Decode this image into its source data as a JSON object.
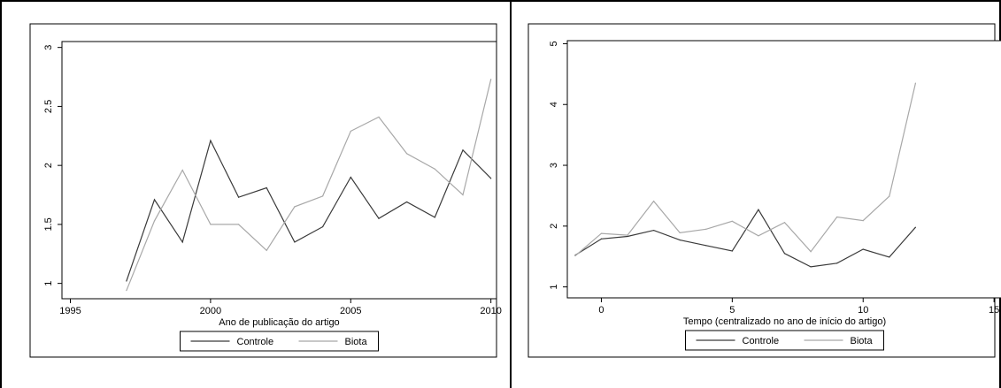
{
  "chart_data": [
    {
      "type": "line",
      "title": "",
      "xlabel": "Ano de publicação do artigo",
      "ylabel": "",
      "xlim": [
        1994.7,
        2010.2
      ],
      "ylim": [
        0.87,
        3.05
      ],
      "xticks": [
        1995,
        2000,
        2005,
        2010
      ],
      "yticks": [
        1,
        1.5,
        2,
        2.5,
        3
      ],
      "ytick_labels": [
        "1",
        "1.5",
        "2",
        "2.5",
        "3"
      ],
      "grid": false,
      "legend_position": "bottom",
      "series": [
        {
          "name": "Controle",
          "color": "#3a3a3a",
          "x": [
            1997,
            1998,
            1999,
            2000,
            2001,
            2002,
            2003,
            2004,
            2005,
            2006,
            2007,
            2008,
            2009,
            2010
          ],
          "y": [
            1.02,
            1.71,
            1.35,
            2.21,
            1.73,
            1.81,
            1.35,
            1.48,
            1.9,
            1.55,
            1.69,
            1.56,
            2.13,
            1.89
          ]
        },
        {
          "name": "Biota",
          "color": "#a8a8a8",
          "x": [
            1997,
            1998,
            1999,
            2000,
            2001,
            2002,
            2003,
            2004,
            2005,
            2006,
            2007,
            2008,
            2009,
            2010
          ],
          "y": [
            0.94,
            1.53,
            1.96,
            1.5,
            1.5,
            1.28,
            1.65,
            1.74,
            2.29,
            2.41,
            2.1,
            1.97,
            1.75,
            2.73
          ]
        }
      ]
    },
    {
      "type": "line",
      "title": "",
      "xlabel": "Tempo (centralizado no ano de início do artigo)",
      "ylabel": "",
      "xlim": [
        -1.3,
        15.3
      ],
      "ylim": [
        0.82,
        5.05
      ],
      "xticks": [
        0,
        5,
        10,
        15
      ],
      "yticks": [
        1,
        2,
        3,
        4,
        5
      ],
      "ytick_labels": [
        "1",
        "2",
        "3",
        "4",
        "5"
      ],
      "grid": false,
      "legend_position": "bottom",
      "series": [
        {
          "name": "Controle",
          "color": "#3a3a3a",
          "x": [
            -1,
            0,
            1,
            2,
            3,
            4,
            5,
            6,
            7,
            8,
            9,
            10,
            11,
            12
          ],
          "y": [
            1.52,
            1.79,
            1.83,
            1.93,
            1.77,
            1.68,
            1.59,
            2.27,
            1.55,
            1.33,
            1.39,
            1.62,
            1.49,
            1.98
          ]
        },
        {
          "name": "Biota",
          "color": "#a8a8a8",
          "x": [
            -1,
            0,
            1,
            2,
            3,
            4,
            5,
            6,
            7,
            8,
            9,
            10,
            11,
            12
          ],
          "y": [
            1.51,
            1.88,
            1.85,
            2.41,
            1.89,
            1.95,
            2.08,
            1.84,
            2.06,
            1.58,
            2.15,
            2.09,
            2.49,
            4.35
          ]
        }
      ]
    }
  ]
}
